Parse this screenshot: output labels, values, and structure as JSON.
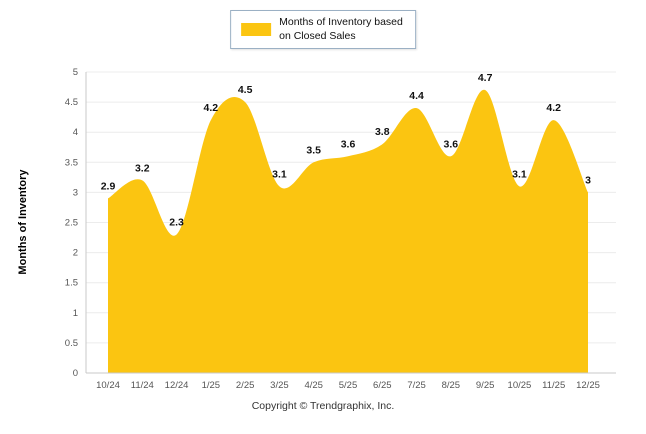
{
  "legend": {
    "label_line1": "Months of Inventory based",
    "label_line2": "on Closed Sales"
  },
  "ylabel": "Months of Inventory",
  "footer": "Copyright © Trendgraphix, Inc.",
  "chart_data": {
    "type": "area",
    "title": "",
    "categories": [
      "10/24",
      "11/24",
      "12/24",
      "1/25",
      "2/25",
      "3/25",
      "4/25",
      "5/25",
      "6/25",
      "7/25",
      "8/25",
      "9/25",
      "10/25",
      "11/25",
      "12/25"
    ],
    "values": [
      2.9,
      3.2,
      2.3,
      4.2,
      4.5,
      3.1,
      3.5,
      3.6,
      3.8,
      4.4,
      3.6,
      4.7,
      3.1,
      4.2,
      3
    ],
    "series_name": "Months of Inventory based on Closed Sales",
    "xlabel": "",
    "ylabel": "Months of Inventory",
    "ylim": [
      0,
      5
    ],
    "ytick_step": 0.5,
    "grid": true,
    "legend_position": "top",
    "colors": {
      "series": "#FBC511",
      "grid": "#ececec",
      "axis": "#c9c9c9",
      "tick_text": "#555555",
      "data_label": "#111111"
    }
  }
}
